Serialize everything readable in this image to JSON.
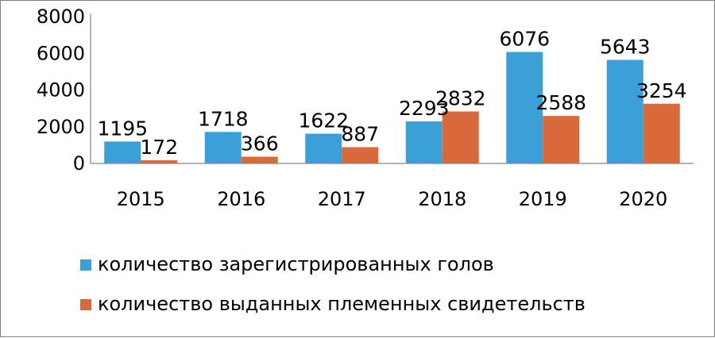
{
  "chart_data": {
    "type": "bar",
    "categories": [
      "2015",
      "2016",
      "2017",
      "2018",
      "2019",
      "2020"
    ],
    "series": [
      {
        "name": "количество зарегистрированных голов",
        "values": [
          1195,
          1718,
          1622,
          2293,
          6076,
          5643
        ],
        "color": "#3b9fd8"
      },
      {
        "name": "количество выданных племенных свидетельств",
        "values": [
          172,
          366,
          887,
          2832,
          2588,
          3254
        ],
        "color": "#d9693a"
      }
    ],
    "yticks": [
      "0",
      "2000",
      "4000",
      "6000",
      "8000"
    ],
    "ylim": [
      0,
      8000
    ],
    "grid": false,
    "legend_position": "bottom",
    "data_labels": true
  }
}
